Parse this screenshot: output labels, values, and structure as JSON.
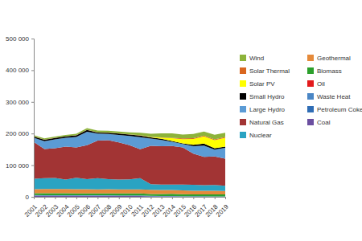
{
  "chart_data": {
    "type": "area",
    "stacked": true,
    "grid": false,
    "legend": "right",
    "x": [
      2001,
      2002,
      2003,
      2004,
      2005,
      2006,
      2007,
      2008,
      2009,
      2010,
      2011,
      2012,
      2013,
      2014,
      2015,
      2016,
      2017,
      2018,
      2019
    ],
    "xlim": [
      2001,
      2019
    ],
    "xticks": [
      2001,
      2002,
      2003,
      2004,
      2005,
      2006,
      2007,
      2008,
      2009,
      2010,
      2011,
      2012,
      2013,
      2014,
      2015,
      2016,
      2017,
      2018,
      2019
    ],
    "ylim": [
      0,
      500000
    ],
    "yticks": [
      {
        "value": 0,
        "label": "0"
      },
      {
        "value": 100000,
        "label": "100 000"
      },
      {
        "value": 200000,
        "label": "200 000"
      },
      {
        "value": 300000,
        "label": "300 000"
      },
      {
        "value": 400000,
        "label": "400 000"
      },
      {
        "value": 500000,
        "label": "500 000"
      }
    ],
    "series": [
      {
        "name": "Coal",
        "color": "#6b4fa0",
        "values": [
          3500,
          3400,
          3300,
          3300,
          3200,
          3100,
          3000,
          3000,
          2800,
          2800,
          2600,
          1500,
          1000,
          1000,
          500,
          300,
          300,
          300,
          250
        ]
      },
      {
        "name": "Petroleum Coke",
        "color": "#2f6db5",
        "values": [
          1000,
          1000,
          1000,
          1000,
          1000,
          1000,
          1000,
          1000,
          1000,
          1000,
          1000,
          900,
          900,
          800,
          800,
          700,
          700,
          600,
          600
        ]
      },
      {
        "name": "Waste Heat",
        "color": "#4a86c5",
        "values": [
          800,
          800,
          800,
          800,
          800,
          800,
          800,
          800,
          800,
          800,
          800,
          700,
          700,
          700,
          700,
          600,
          600,
          600,
          600
        ]
      },
      {
        "name": "Oil",
        "color": "#e31a1c",
        "values": [
          100,
          100,
          100,
          100,
          100,
          100,
          100,
          100,
          100,
          100,
          100,
          100,
          100,
          100,
          50,
          50,
          50,
          50,
          50
        ]
      },
      {
        "name": "Biomass",
        "color": "#2ca02c",
        "values": [
          6000,
          6100,
          6200,
          6100,
          6000,
          5800,
          5800,
          6000,
          6000,
          5900,
          6000,
          6000,
          6400,
          6800,
          6400,
          6000,
          5800,
          5900,
          5800
        ]
      },
      {
        "name": "Geothermal",
        "color": "#e58a3a",
        "values": [
          13000,
          13300,
          13300,
          13400,
          13300,
          13100,
          13000,
          12900,
          13000,
          12700,
          12700,
          12700,
          12500,
          12200,
          12000,
          11600,
          11700,
          11500,
          11300
        ]
      },
      {
        "name": "Nuclear",
        "color": "#2aa3c2",
        "values": [
          33000,
          34000,
          35000,
          30000,
          36000,
          32000,
          35000,
          32000,
          31000,
          32000,
          36000,
          18000,
          17000,
          17000,
          18500,
          18900,
          17900,
          18300,
          16200
        ]
      },
      {
        "name": "Natural Gas",
        "color": "#a23434",
        "values": [
          116000,
          92000,
          94000,
          104000,
          96000,
          107000,
          119000,
          123000,
          117000,
          108000,
          91000,
          121000,
          121000,
          122000,
          117000,
          98000,
          89000,
          90000,
          86000
        ]
      },
      {
        "name": "Large Hydro",
        "color": "#5b9bd5",
        "values": [
          13000,
          25000,
          28000,
          28000,
          33000,
          43000,
          22000,
          20000,
          24000,
          29000,
          38000,
          23000,
          20000,
          13000,
          11000,
          24000,
          36000,
          22000,
          34000
        ]
      },
      {
        "name": "Small Hydro",
        "color": "#000000",
        "values": [
          4000,
          4500,
          4500,
          4000,
          5000,
          5500,
          3500,
          3500,
          4000,
          4500,
          5500,
          4000,
          3500,
          2500,
          2000,
          4500,
          6000,
          4000,
          4000
        ]
      },
      {
        "name": "Solar PV",
        "color": "#ffff00",
        "values": [
          0,
          0,
          0,
          0,
          0,
          0,
          0,
          0,
          0,
          100,
          300,
          1000,
          4000,
          9000,
          13000,
          18000,
          23000,
          26000,
          28000
        ]
      },
      {
        "name": "Solar Thermal",
        "color": "#d9661f",
        "values": [
          600,
          600,
          600,
          600,
          600,
          600,
          600,
          600,
          600,
          700,
          800,
          900,
          700,
          1500,
          2500,
          2500,
          2500,
          2500,
          2000
        ]
      },
      {
        "name": "Wind",
        "color": "#8db33a",
        "values": [
          3500,
          3600,
          3800,
          4300,
          4400,
          4900,
          5600,
          5700,
          6200,
          6200,
          7600,
          9200,
          12700,
          13800,
          12200,
          13500,
          12800,
          14100,
          13700
        ]
      }
    ]
  }
}
